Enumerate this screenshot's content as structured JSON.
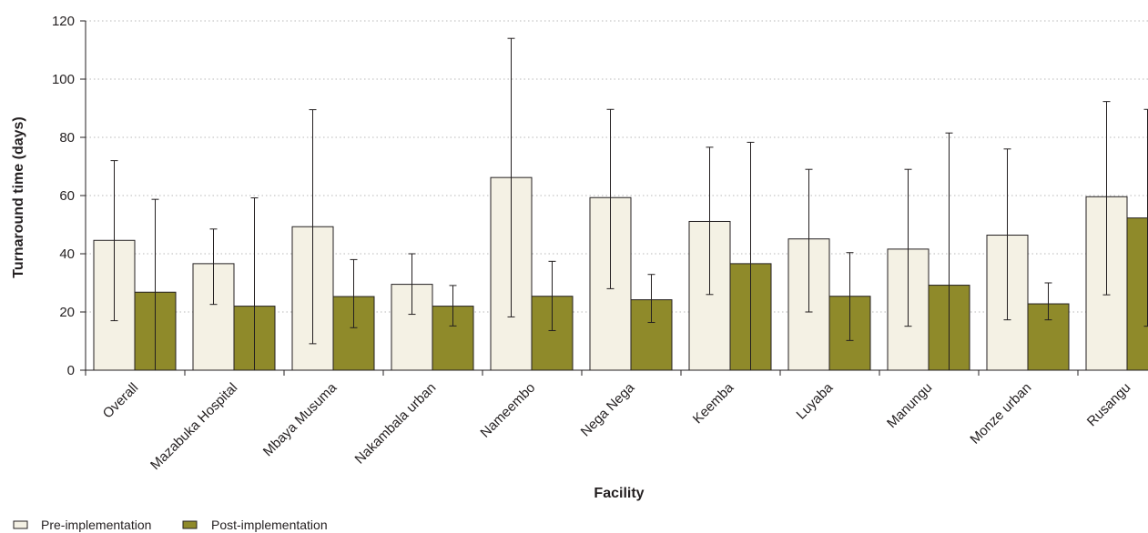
{
  "chart_data": {
    "type": "bar",
    "categories": [
      "Overall",
      "Mazabuka Hospital",
      "Mbaya Musuma",
      "Nakambala urban",
      "Nameembo",
      "Nega Nega",
      "Keemba",
      "Luyaba",
      "Manungu",
      "Monze urban",
      "Rusangu"
    ],
    "series": [
      {
        "name": "Pre-implementation",
        "color": "#f4f1e4",
        "values": [
          44.6,
          36.6,
          49.3,
          29.5,
          66.2,
          59.3,
          51.1,
          45.1,
          41.6,
          46.4,
          59.6
        ],
        "error_low": [
          17,
          22.6,
          9.1,
          19.2,
          18.3,
          28,
          26,
          20,
          15.1,
          17.3,
          25.9
        ],
        "error_high": [
          72,
          48.5,
          89.5,
          40,
          114,
          89.6,
          76.6,
          69,
          69,
          76,
          92.3
        ]
      },
      {
        "name": "Post-implementation",
        "color": "#8f8a2a",
        "values": [
          26.8,
          22,
          25.3,
          22,
          25.4,
          24.2,
          36.6,
          25.4,
          29.2,
          22.8,
          52.3
        ],
        "error_low": [
          0,
          0,
          14.6,
          15.2,
          13.6,
          16.4,
          0,
          10.2,
          0,
          17.3,
          15.1
        ],
        "error_high": [
          58.7,
          59.2,
          38,
          29.1,
          37.4,
          32.9,
          78.3,
          40.4,
          81.5,
          30,
          89.6
        ]
      }
    ],
    "xlabel": "Facility",
    "ylabel": "Turnaround time (days)",
    "yticks": [
      "0",
      "20",
      "40",
      "60",
      "80",
      "100",
      "120"
    ],
    "ylim": [
      0,
      120
    ],
    "grid": "horizontal dotted",
    "legend_position": "bottom-left",
    "legend": [
      "Pre-implementation",
      "Post-implementation"
    ]
  }
}
